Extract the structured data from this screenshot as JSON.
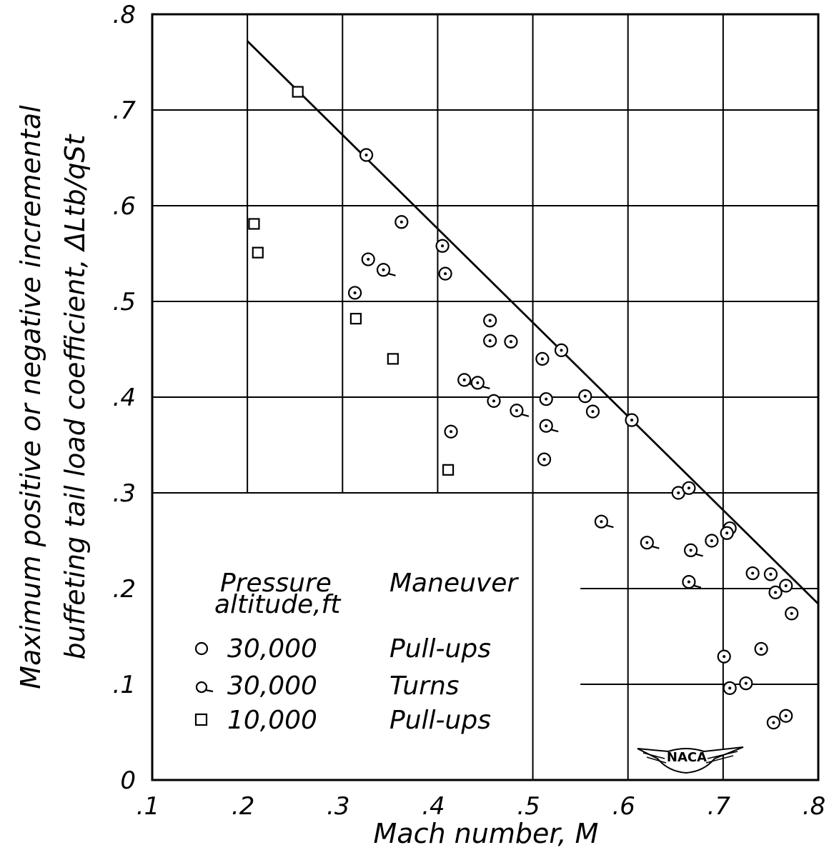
{
  "chart_data": {
    "type": "scatter",
    "title": "",
    "xlabel": "Mach number, M",
    "ylabel_line1": "Maximum positive or negative incremental",
    "ylabel_line2": "buffeting tail load coefficient, ΔLtb/qSt",
    "xlim": [
      0.1,
      0.8
    ],
    "ylim": [
      0,
      0.8
    ],
    "x_ticks": [
      ".1",
      ".2",
      ".3",
      ".4",
      ".5",
      ".6",
      ".7",
      ".8"
    ],
    "y_ticks": [
      "0",
      ".1",
      ".2",
      ".3",
      ".4",
      ".5",
      ".6",
      ".7",
      ".8"
    ],
    "grid": true,
    "legend": {
      "header_left_line1": "Pressure",
      "header_left_line2": "altitude,ft",
      "header_right": "Maneuver",
      "entries": [
        {
          "marker": "circle",
          "altitude": "30,000",
          "maneuver": "Pull-ups"
        },
        {
          "marker": "circle-tail",
          "altitude": "30,000",
          "maneuver": "Turns"
        },
        {
          "marker": "square",
          "altitude": "10,000",
          "maneuver": "Pull-ups"
        }
      ],
      "placement": "bottom-left"
    },
    "fit_line": {
      "x": [
        0.2,
        0.8
      ],
      "y": [
        0.772,
        0.184
      ]
    },
    "series": [
      {
        "marker": "circle",
        "points": [
          [
            0.325,
            0.653
          ],
          [
            0.362,
            0.583
          ],
          [
            0.405,
            0.558
          ],
          [
            0.408,
            0.529
          ],
          [
            0.313,
            0.509
          ],
          [
            0.327,
            0.544
          ],
          [
            0.455,
            0.48
          ],
          [
            0.455,
            0.459
          ],
          [
            0.477,
            0.458
          ],
          [
            0.459,
            0.396
          ],
          [
            0.414,
            0.364
          ],
          [
            0.51,
            0.44
          ],
          [
            0.53,
            0.449
          ],
          [
            0.514,
            0.398
          ],
          [
            0.555,
            0.401
          ],
          [
            0.563,
            0.385
          ],
          [
            0.512,
            0.335
          ],
          [
            0.604,
            0.376
          ],
          [
            0.653,
            0.3
          ],
          [
            0.664,
            0.305
          ],
          [
            0.688,
            0.25
          ],
          [
            0.707,
            0.263
          ],
          [
            0.704,
            0.258
          ],
          [
            0.731,
            0.216
          ],
          [
            0.75,
            0.215
          ],
          [
            0.755,
            0.196
          ],
          [
            0.766,
            0.203
          ],
          [
            0.772,
            0.174
          ],
          [
            0.701,
            0.129
          ],
          [
            0.74,
            0.137
          ],
          [
            0.707,
            0.096
          ],
          [
            0.724,
            0.101
          ],
          [
            0.753,
            0.06
          ],
          [
            0.766,
            0.067
          ]
        ]
      },
      {
        "marker": "circle-tail",
        "points": [
          [
            0.343,
            0.533
          ],
          [
            0.428,
            0.418
          ],
          [
            0.442,
            0.415
          ],
          [
            0.483,
            0.386
          ],
          [
            0.514,
            0.37
          ],
          [
            0.572,
            0.27
          ],
          [
            0.62,
            0.248
          ],
          [
            0.666,
            0.24
          ],
          [
            0.664,
            0.207
          ]
        ]
      },
      {
        "marker": "square",
        "points": [
          [
            0.253,
            0.719
          ],
          [
            0.207,
            0.581
          ],
          [
            0.211,
            0.551
          ],
          [
            0.314,
            0.482
          ],
          [
            0.353,
            0.44
          ],
          [
            0.411,
            0.324
          ]
        ]
      }
    ],
    "emblem_text": "NACA"
  }
}
